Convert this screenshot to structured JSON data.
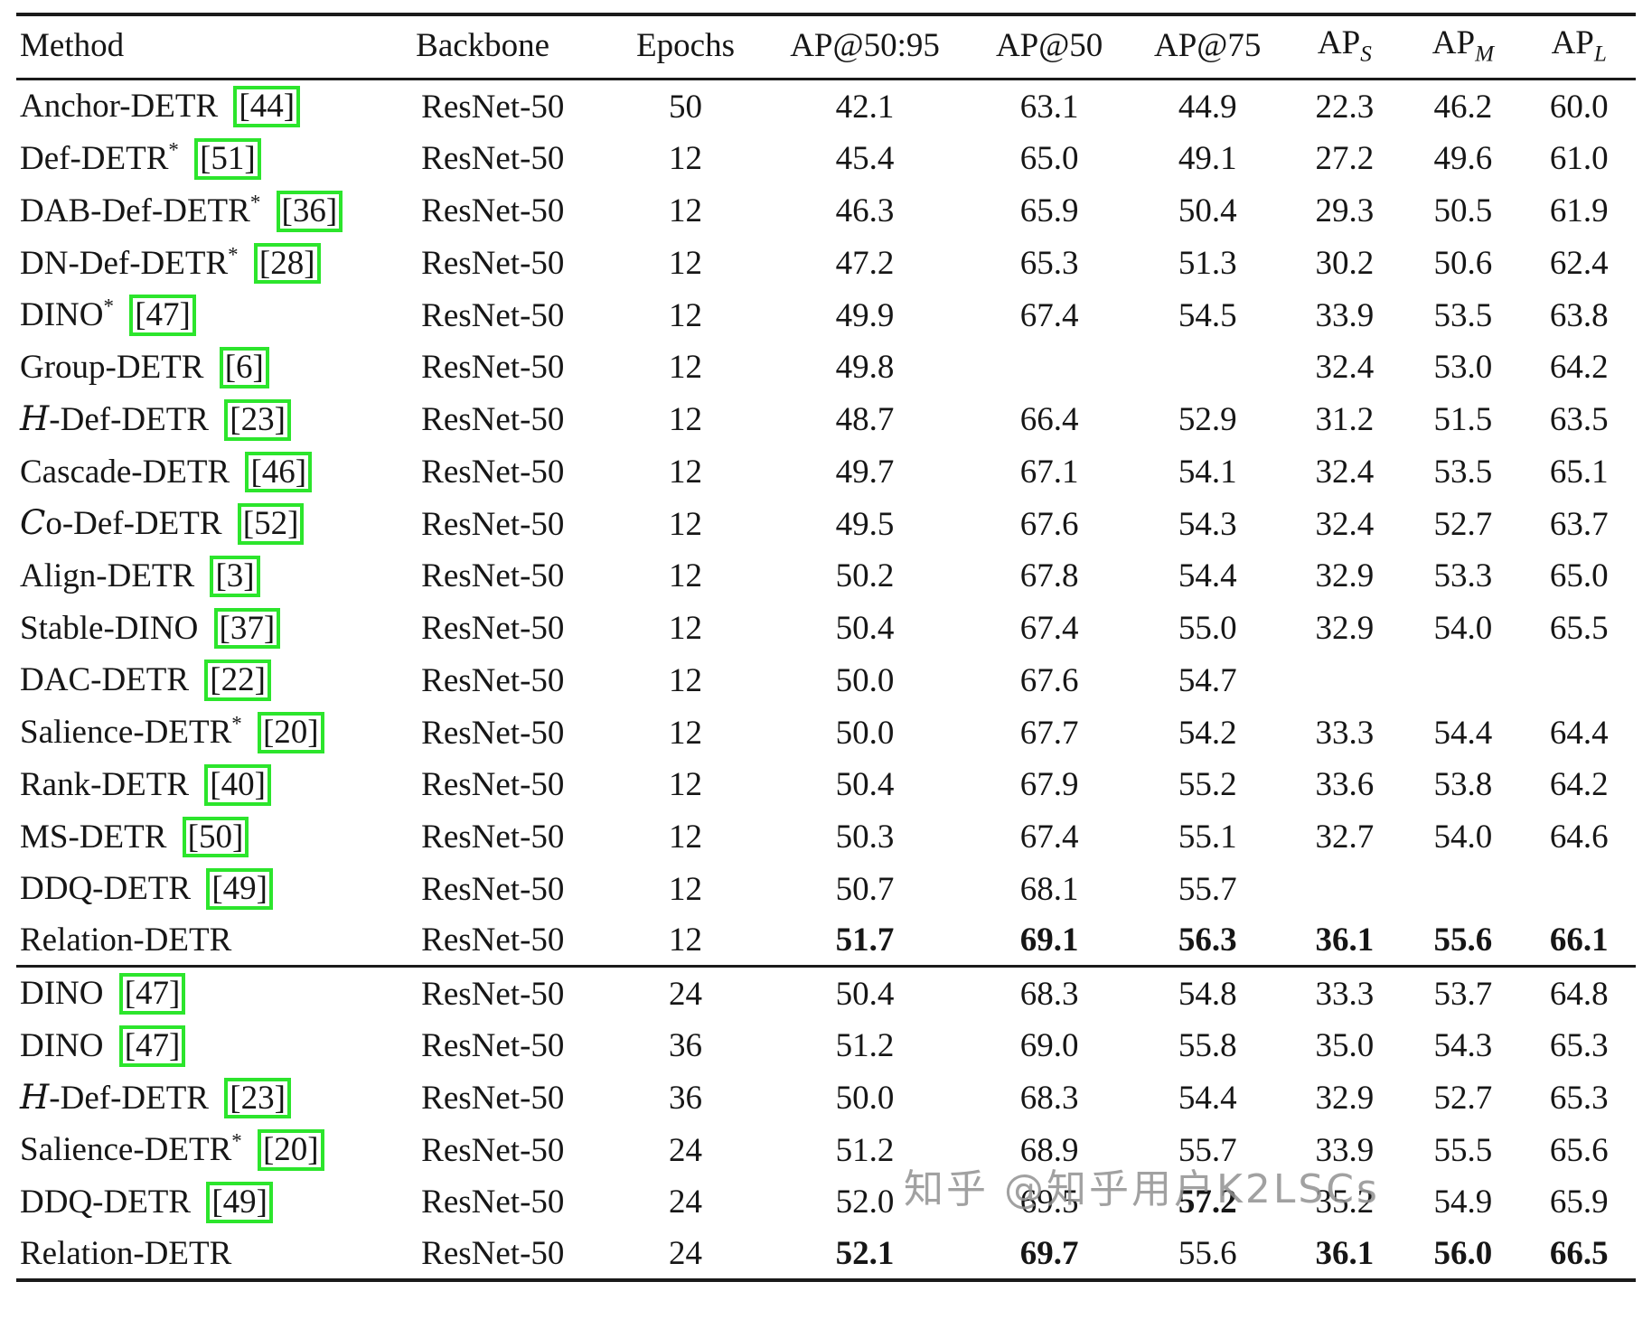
{
  "watermark": "知乎 @知乎用户K2LSCs",
  "table": {
    "headers": [
      {
        "key": "method",
        "label": "Method",
        "align": "left"
      },
      {
        "key": "backbone",
        "label": "Backbone",
        "align": "left"
      },
      {
        "key": "epochs",
        "label": "Epochs"
      },
      {
        "key": "ap50_95",
        "label": "AP@50:95"
      },
      {
        "key": "ap50",
        "label": "AP@50"
      },
      {
        "key": "ap75",
        "label": "AP@75"
      },
      {
        "key": "ap_s",
        "label": "AP",
        "sub": "S"
      },
      {
        "key": "ap_m",
        "label": "AP",
        "sub": "M"
      },
      {
        "key": "ap_l",
        "label": "AP",
        "sub": "L"
      }
    ],
    "sections": [
      {
        "rows": [
          {
            "method": "Anchor-DETR",
            "cite": "44",
            "backbone": "ResNet-50",
            "epochs": "50",
            "ap": [
              "42.1",
              "63.1",
              "44.9",
              "22.3",
              "46.2",
              "60.0"
            ],
            "bold": []
          },
          {
            "method": "Def-DETR",
            "sup": "*",
            "cite": "51",
            "backbone": "ResNet-50",
            "epochs": "12",
            "ap": [
              "45.4",
              "65.0",
              "49.1",
              "27.2",
              "49.6",
              "61.0"
            ],
            "bold": []
          },
          {
            "method": "DAB-Def-DETR",
            "sup": "*",
            "cite": "36",
            "backbone": "ResNet-50",
            "epochs": "12",
            "ap": [
              "46.3",
              "65.9",
              "50.4",
              "29.3",
              "50.5",
              "61.9"
            ],
            "bold": []
          },
          {
            "method": "DN-Def-DETR",
            "sup": "*",
            "cite": "28",
            "backbone": "ResNet-50",
            "epochs": "12",
            "ap": [
              "47.2",
              "65.3",
              "51.3",
              "30.2",
              "50.6",
              "62.4"
            ],
            "bold": []
          },
          {
            "method": "DINO",
            "sup": "*",
            "cite": "47",
            "backbone": "ResNet-50",
            "epochs": "12",
            "ap": [
              "49.9",
              "67.4",
              "54.5",
              "33.9",
              "53.5",
              "63.8"
            ],
            "bold": []
          },
          {
            "method": "Group-DETR",
            "cite": "6",
            "backbone": "ResNet-50",
            "epochs": "12",
            "ap": [
              "49.8",
              "",
              "",
              "32.4",
              "53.0",
              "64.2"
            ],
            "bold": []
          },
          {
            "method": "H-Def-DETR",
            "script_first": true,
            "cite": "23",
            "backbone": "ResNet-50",
            "epochs": "12",
            "ap": [
              "48.7",
              "66.4",
              "52.9",
              "31.2",
              "51.5",
              "63.5"
            ],
            "bold": []
          },
          {
            "method": "Cascade-DETR",
            "cite": "46",
            "backbone": "ResNet-50",
            "epochs": "12",
            "ap": [
              "49.7",
              "67.1",
              "54.1",
              "32.4",
              "53.5",
              "65.1"
            ],
            "bold": []
          },
          {
            "method": "Co-Def-DETR",
            "script_first": true,
            "cite": "52",
            "backbone": "ResNet-50",
            "epochs": "12",
            "ap": [
              "49.5",
              "67.6",
              "54.3",
              "32.4",
              "52.7",
              "63.7"
            ],
            "bold": []
          },
          {
            "method": "Align-DETR",
            "cite": "3",
            "backbone": "ResNet-50",
            "epochs": "12",
            "ap": [
              "50.2",
              "67.8",
              "54.4",
              "32.9",
              "53.3",
              "65.0"
            ],
            "bold": []
          },
          {
            "method": "Stable-DINO",
            "cite": "37",
            "backbone": "ResNet-50",
            "epochs": "12",
            "ap": [
              "50.4",
              "67.4",
              "55.0",
              "32.9",
              "54.0",
              "65.5"
            ],
            "bold": []
          },
          {
            "method": "DAC-DETR",
            "cite": "22",
            "backbone": "ResNet-50",
            "epochs": "12",
            "ap": [
              "50.0",
              "67.6",
              "54.7",
              "",
              "",
              ""
            ],
            "bold": []
          },
          {
            "method": "Salience-DETR",
            "sup": "*",
            "cite": "20",
            "backbone": "ResNet-50",
            "epochs": "12",
            "ap": [
              "50.0",
              "67.7",
              "54.2",
              "33.3",
              "54.4",
              "64.4"
            ],
            "bold": []
          },
          {
            "method": "Rank-DETR",
            "cite": "40",
            "backbone": "ResNet-50",
            "epochs": "12",
            "ap": [
              "50.4",
              "67.9",
              "55.2",
              "33.6",
              "53.8",
              "64.2"
            ],
            "bold": []
          },
          {
            "method": "MS-DETR",
            "cite": "50",
            "backbone": "ResNet-50",
            "epochs": "12",
            "ap": [
              "50.3",
              "67.4",
              "55.1",
              "32.7",
              "54.0",
              "64.6"
            ],
            "bold": []
          },
          {
            "method": "DDQ-DETR",
            "cite": "49",
            "backbone": "ResNet-50",
            "epochs": "12",
            "ap": [
              "50.7",
              "68.1",
              "55.7",
              "",
              "",
              ""
            ],
            "bold": []
          },
          {
            "method": "Relation-DETR",
            "backbone": "ResNet-50",
            "epochs": "12",
            "ap": [
              "51.7",
              "69.1",
              "56.3",
              "36.1",
              "55.6",
              "66.1"
            ],
            "bold": [
              0,
              1,
              2,
              3,
              4,
              5
            ]
          }
        ]
      },
      {
        "rows": [
          {
            "method": "DINO",
            "cite": "47",
            "backbone": "ResNet-50",
            "epochs": "24",
            "ap": [
              "50.4",
              "68.3",
              "54.8",
              "33.3",
              "53.7",
              "64.8"
            ],
            "bold": []
          },
          {
            "method": "DINO",
            "cite": "47",
            "backbone": "ResNet-50",
            "epochs": "36",
            "ap": [
              "51.2",
              "69.0",
              "55.8",
              "35.0",
              "54.3",
              "65.3"
            ],
            "bold": []
          },
          {
            "method": "H-Def-DETR",
            "script_first": true,
            "cite": "23",
            "backbone": "ResNet-50",
            "epochs": "36",
            "ap": [
              "50.0",
              "68.3",
              "54.4",
              "32.9",
              "52.7",
              "65.3"
            ],
            "bold": []
          },
          {
            "method": "Salience-DETR",
            "sup": "*",
            "cite": "20",
            "backbone": "ResNet-50",
            "epochs": "24",
            "ap": [
              "51.2",
              "68.9",
              "55.7",
              "33.9",
              "55.5",
              "65.6"
            ],
            "bold": []
          },
          {
            "method": "DDQ-DETR",
            "cite": "49",
            "backbone": "ResNet-50",
            "epochs": "24",
            "ap": [
              "52.0",
              "69.5",
              "57.2",
              "35.2",
              "54.9",
              "65.9"
            ],
            "bold": [
              2
            ]
          },
          {
            "method": "Relation-DETR",
            "backbone": "ResNet-50",
            "epochs": "24",
            "ap": [
              "52.1",
              "69.7",
              "55.6",
              "36.1",
              "56.0",
              "66.5"
            ],
            "bold": [
              0,
              1,
              3,
              4,
              5
            ]
          }
        ]
      }
    ]
  }
}
